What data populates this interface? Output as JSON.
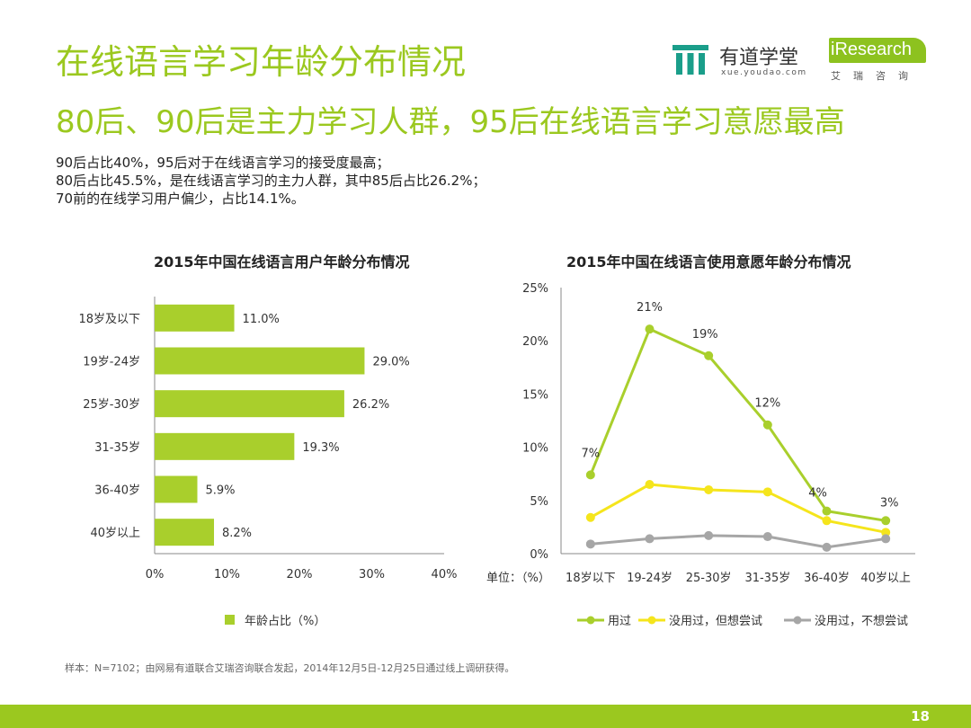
{
  "header": {
    "title": "在线语言学习年龄分布情况",
    "subtitle": "80后、90后是主力学习人群，95后在线语言学习意愿最高",
    "youdao_name": "有道学堂",
    "youdao_url": "xue.youdao.com",
    "iresearch_word": "iResearch",
    "iresearch_cn": "艾瑞咨询"
  },
  "description": [
    "90后占比40%，95后对于在线语言学习的接受度最高；",
    "80后占比45.5%，是在线语言学习的主力人群，其中85后占比26.2%；",
    "70前的在线学习用户偏少，占比14.1%。"
  ],
  "footnote": "样本：N=7102；由网易有道联合艾瑞咨询联合发起，2014年12月5日-12月25日通过线上调研获得。",
  "page_number": "18",
  "colors": {
    "brand": "#9bc81f",
    "bar": "#a9cf2c",
    "series_used": "#a9cf2c",
    "series_want": "#f5e51c",
    "series_no": "#a6a6a6"
  },
  "chart_data": [
    {
      "type": "bar",
      "orientation": "horizontal",
      "title": "2015年中国在线语言用户年龄分布情况",
      "categories": [
        "18岁及以下",
        "19岁-24岁",
        "25岁-30岁",
        "31-35岁",
        "36-40岁",
        "40岁以上"
      ],
      "values": [
        11.0,
        29.0,
        26.2,
        19.3,
        5.9,
        8.2
      ],
      "value_labels": [
        "11.0%",
        "29.0%",
        "26.2%",
        "19.3%",
        "5.9%",
        "8.2%"
      ],
      "xlim": [
        0,
        40
      ],
      "x_ticks": [
        "0%",
        "10%",
        "20%",
        "30%",
        "40%"
      ],
      "legend": [
        "年龄占比（%）"
      ],
      "legend_position": "bottom",
      "grid": false
    },
    {
      "type": "line",
      "title": "2015年中国在线语言使用意愿年龄分布情况",
      "categories": [
        "18岁以下",
        "19-24岁",
        "25-30岁",
        "31-35岁",
        "36-40岁",
        "40岁以上"
      ],
      "unit_label": "单位：（%）",
      "ylim": [
        0,
        25
      ],
      "y_ticks": [
        "0%",
        "5%",
        "10%",
        "15%",
        "20%",
        "25%"
      ],
      "series": [
        {
          "name": "用过",
          "values": [
            7.4,
            21.1,
            18.6,
            12.1,
            4.0,
            3.1
          ],
          "labels": [
            "7%",
            "21%",
            "19%",
            "12%",
            "4%",
            "3%"
          ]
        },
        {
          "name": "没用过，但想尝试",
          "values": [
            3.4,
            6.5,
            6.0,
            5.8,
            3.1,
            2.0
          ]
        },
        {
          "name": "没用过，不想尝试",
          "values": [
            0.9,
            1.4,
            1.7,
            1.6,
            0.6,
            1.4
          ]
        }
      ],
      "legend_position": "bottom",
      "grid": false
    }
  ]
}
